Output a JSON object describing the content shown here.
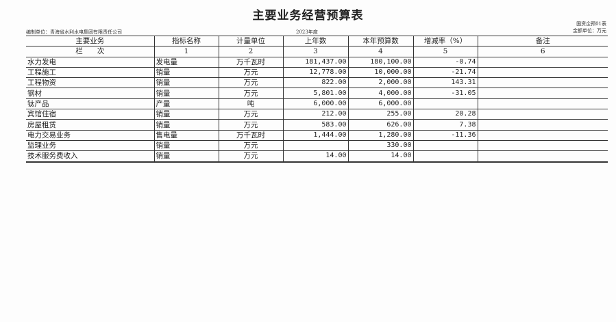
{
  "title": "主要业务经营预算表",
  "form_code": "国资企预01表",
  "compiler": "编制单位：青海省水利水电集团有限责任公司",
  "year": "2023年度",
  "unit": "金额单位：万元",
  "columns": [
    "主要业务",
    "指标名称",
    "计量单位",
    "上年数",
    "本年预算数",
    "增减率（%）",
    "备注"
  ],
  "index_row": [
    "栏　　次",
    "1",
    "2",
    "3",
    "4",
    "5",
    "6"
  ],
  "rows": [
    [
      "水力发电",
      "发电量",
      "万千瓦时",
      "181,437.00",
      "180,100.00",
      "-0.74",
      ""
    ],
    [
      "工程施工",
      "销量",
      "万元",
      "12,778.00",
      "10,000.00",
      "-21.74",
      ""
    ],
    [
      "工程物资",
      "销量",
      "万元",
      "822.00",
      "2,000.00",
      "143.31",
      ""
    ],
    [
      "钢材",
      "销量",
      "万元",
      "5,801.00",
      "4,000.00",
      "-31.05",
      ""
    ],
    [
      "钛产品",
      "产量",
      "吨",
      "6,000.00",
      "6,000.00",
      "",
      ""
    ],
    [
      "宾馆住宿",
      "销量",
      "万元",
      "212.00",
      "255.00",
      "20.28",
      ""
    ],
    [
      "房屋租赁",
      "销量",
      "万元",
      "583.00",
      "626.00",
      "7.38",
      ""
    ],
    [
      "电力交易业务",
      "售电量",
      "万千瓦时",
      "1,444.00",
      "1,280.00",
      "-11.36",
      ""
    ],
    [
      "监理业务",
      "销量",
      "万元",
      "",
      "330.00",
      "",
      ""
    ],
    [
      "技术服务费收入",
      "销量",
      "万元",
      "14.00",
      "14.00",
      "",
      ""
    ]
  ]
}
